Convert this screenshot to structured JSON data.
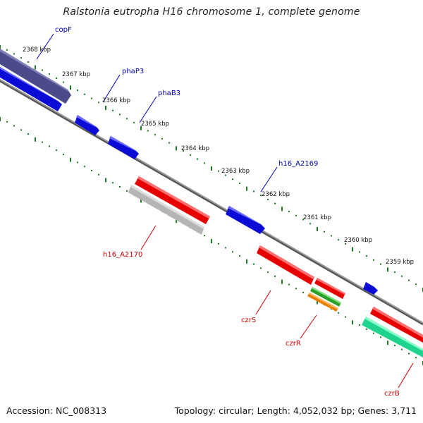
{
  "title": "Ralstonia eutropha H16 chromosome 1, complete genome",
  "footer": {
    "accession": "Accession: NC_008313",
    "topology": "Topology: circular; Length: 4,052,032 bp; Genes: 3,711"
  },
  "colors": {
    "backbone": "#808080",
    "tick": "#1e7a1e",
    "blue": "#0b0bd6",
    "purple": "#4b4b8a",
    "red": "#e60000",
    "gray": "#b5b5b5",
    "green": "#2aa02a",
    "orange": "#e87d00",
    "mint": "#1fd38e",
    "label_blue": "#0000b3",
    "label_red": "#cc0000"
  },
  "scale_labels": [
    "2368 kbp",
    "2367 kbp",
    "2366 kbp",
    "2365 kbp",
    "2364 kbp",
    "2363 kbp",
    "2362 kbp",
    "2361 kbp",
    "2360 kbp",
    "2359 kbp"
  ],
  "gene_labels": [
    {
      "text": "copF",
      "color": "label_blue"
    },
    {
      "text": "phaP3",
      "color": "label_blue"
    },
    {
      "text": "phaB3",
      "color": "label_blue"
    },
    {
      "text": "h16_A2169",
      "color": "label_blue"
    },
    {
      "text": "h16_A2170",
      "color": "label_red"
    },
    {
      "text": "czrS",
      "color": "label_red"
    },
    {
      "text": "czrR",
      "color": "label_red"
    },
    {
      "text": "czrB",
      "color": "label_red"
    }
  ]
}
